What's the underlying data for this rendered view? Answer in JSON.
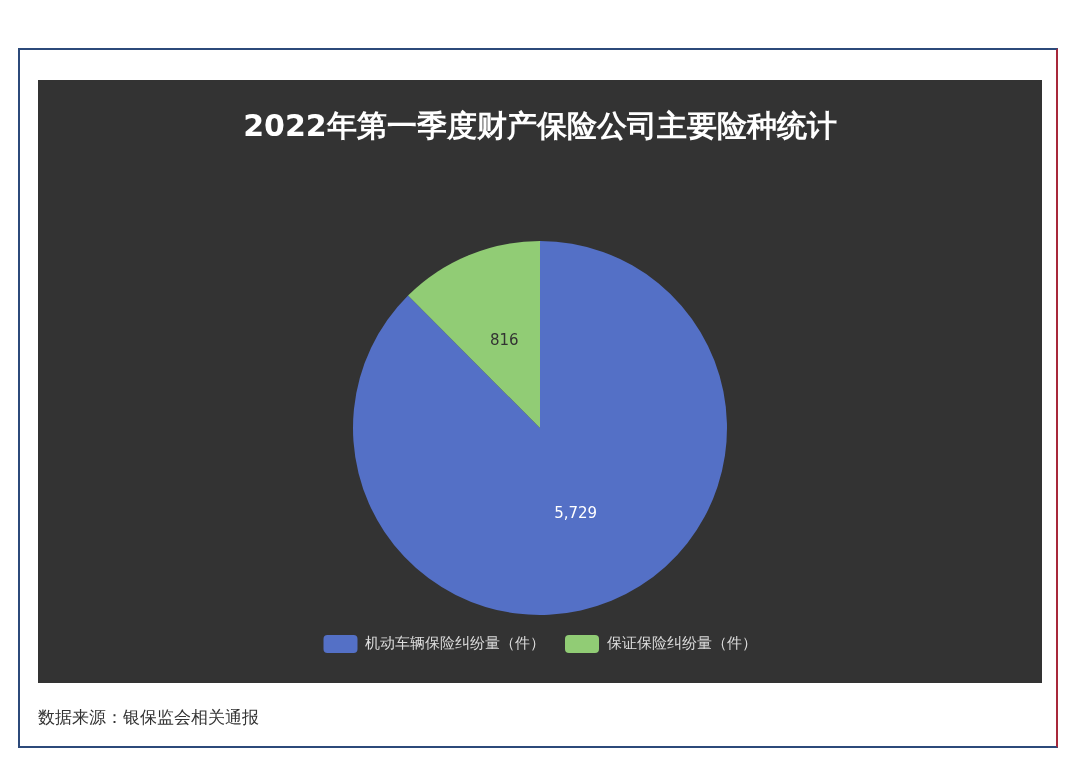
{
  "chart_data": {
    "type": "pie",
    "title": "2022年第一季度财产保险公司主要险种统计",
    "categories": [
      "机动车辆保险纠纷量（件）",
      "保证保险纠纷量（件）"
    ],
    "values": [
      5729,
      816
    ],
    "colors": [
      "#5470c6",
      "#91cc75"
    ],
    "value_labels": [
      "5,729",
      "816"
    ],
    "legend": "bottom",
    "annotations": [
      "数据来源：银保监会相关通报"
    ]
  }
}
